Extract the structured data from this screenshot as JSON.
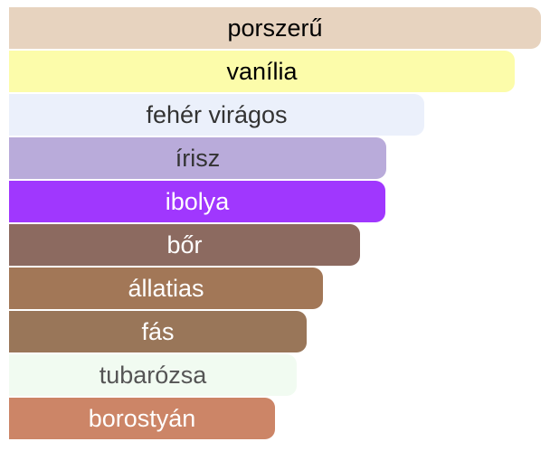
{
  "chart_data": {
    "type": "bar",
    "orientation": "horizontal",
    "categories": [
      "porszerű",
      "vanília",
      "fehér virágos",
      "írisz",
      "ibolya",
      "bőr",
      "állatias",
      "fás",
      "tubarózsa",
      "borostyán"
    ],
    "values": [
      100,
      95,
      78,
      71,
      70.8,
      66,
      59,
      56,
      54,
      50
    ],
    "xlim": [
      0,
      100
    ],
    "colors": [
      "#e7d3bf",
      "#fcfcaa",
      "#ebf0fb",
      "#b9abda",
      "#a037fe",
      "#8c6a60",
      "#a27757",
      "#997659",
      "#f1fbf1",
      "#cc8567"
    ],
    "text_colors": [
      "#000000",
      "#000000",
      "#333333",
      "#333333",
      "#ffffff",
      "#ffffff",
      "#ffffff",
      "#ffffff",
      "#555555",
      "#ffffff"
    ]
  }
}
